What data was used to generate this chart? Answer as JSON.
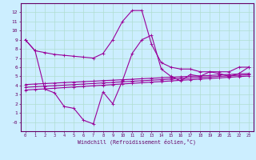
{
  "xlabel": "Windchill (Refroidissement éolien,°C)",
  "background_color": "#cceeff",
  "grid_color": "#b0ddd0",
  "line_color": "#990099",
  "x_hours": [
    0,
    1,
    2,
    3,
    4,
    5,
    6,
    7,
    8,
    9,
    10,
    11,
    12,
    13,
    14,
    15,
    16,
    17,
    18,
    19,
    20,
    21,
    22,
    23
  ],
  "temp_line": [
    9.0,
    7.8,
    7.6,
    7.4,
    7.3,
    7.2,
    7.1,
    7.0,
    7.5,
    9.0,
    11.0,
    12.2,
    12.2,
    8.5,
    6.5,
    6.0,
    5.8,
    5.8,
    5.5,
    5.5,
    5.5,
    5.5,
    6.0,
    6.0
  ],
  "windchill_line": [
    9.0,
    7.8,
    3.6,
    3.2,
    1.7,
    1.5,
    0.2,
    -0.2,
    3.3,
    2.0,
    4.5,
    7.5,
    9.0,
    9.5,
    5.8,
    5.0,
    4.5,
    5.2,
    5.0,
    5.5,
    5.3,
    5.0,
    5.3,
    6.0
  ],
  "linear1": [
    3.5,
    3.57,
    3.63,
    3.7,
    3.77,
    3.83,
    3.9,
    3.97,
    4.03,
    4.1,
    4.17,
    4.23,
    4.3,
    4.37,
    4.43,
    4.5,
    4.57,
    4.63,
    4.7,
    4.77,
    4.83,
    4.9,
    4.97,
    5.03
  ],
  "linear2": [
    3.8,
    3.86,
    3.92,
    3.98,
    4.04,
    4.1,
    4.16,
    4.22,
    4.28,
    4.34,
    4.4,
    4.46,
    4.52,
    4.58,
    4.64,
    4.7,
    4.76,
    4.82,
    4.88,
    4.94,
    5.0,
    5.06,
    5.12,
    5.18
  ],
  "linear3": [
    4.1,
    4.16,
    4.21,
    4.26,
    4.32,
    4.37,
    4.42,
    4.47,
    4.53,
    4.58,
    4.63,
    4.68,
    4.74,
    4.79,
    4.84,
    4.89,
    4.95,
    5.0,
    5.05,
    5.1,
    5.16,
    5.21,
    5.26,
    5.31
  ],
  "ylim": [
    -1,
    13
  ],
  "xlim": [
    -0.5,
    23.5
  ],
  "yticks": [
    0,
    1,
    2,
    3,
    4,
    5,
    6,
    7,
    8,
    9,
    10,
    11,
    12
  ],
  "xticks": [
    0,
    1,
    2,
    3,
    4,
    5,
    6,
    7,
    8,
    9,
    10,
    11,
    12,
    13,
    14,
    15,
    16,
    17,
    18,
    19,
    20,
    21,
    22,
    23
  ]
}
